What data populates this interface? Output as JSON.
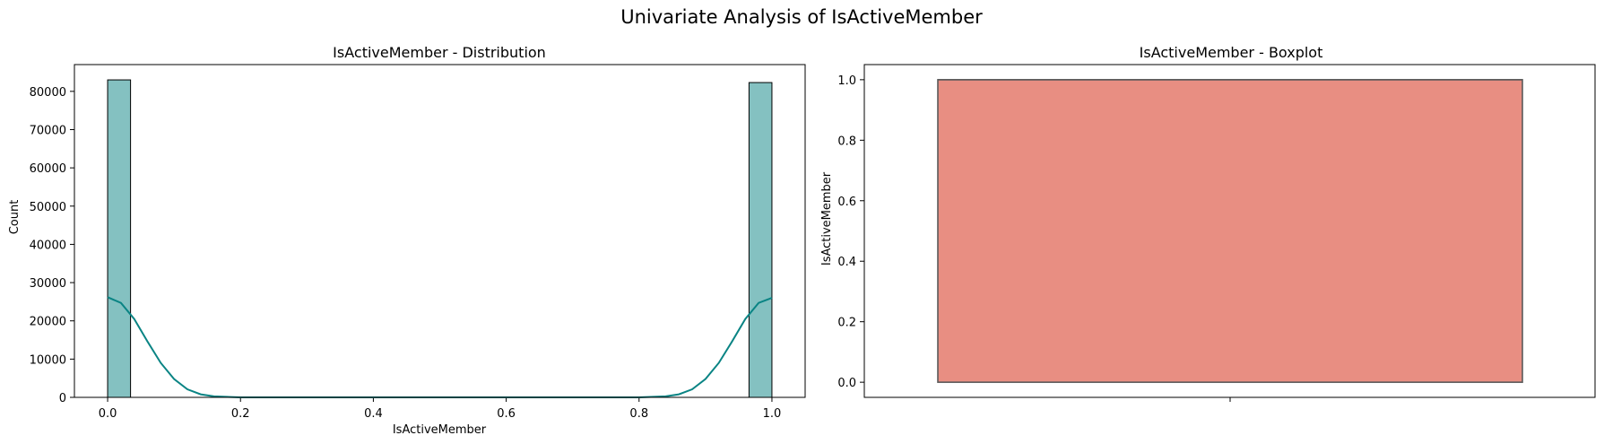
{
  "figure": {
    "title": "Univariate Analysis of IsActiveMember"
  },
  "chart_data": [
    {
      "type": "bar",
      "title": "IsActiveMember - Distribution",
      "xlabel": "IsActiveMember",
      "ylabel": "Count",
      "xlim": [
        -0.05,
        1.05
      ],
      "ylim": [
        0,
        87000
      ],
      "xticks": [
        0.0,
        0.2,
        0.4,
        0.6,
        0.8,
        1.0
      ],
      "xtick_labels": [
        "0.0",
        "0.2",
        "0.4",
        "0.6",
        "0.8",
        "1.0"
      ],
      "yticks": [
        0,
        10000,
        20000,
        30000,
        40000,
        50000,
        60000,
        70000,
        80000
      ],
      "ytick_labels": [
        "0",
        "10000",
        "20000",
        "30000",
        "40000",
        "50000",
        "60000",
        "70000",
        "80000"
      ],
      "bins": [
        {
          "x0": 0.0,
          "x1": 0.0345,
          "count": 83000
        },
        {
          "x0": 0.9655,
          "x1": 1.0,
          "count": 82300
        }
      ],
      "kde": {
        "x": [
          0.0,
          0.02,
          0.04,
          0.06,
          0.08,
          0.1,
          0.12,
          0.14,
          0.16,
          0.2,
          0.4,
          0.6,
          0.8,
          0.84,
          0.86,
          0.88,
          0.9,
          0.92,
          0.94,
          0.96,
          0.98,
          1.0
        ],
        "y": [
          26200,
          24700,
          20500,
          14600,
          9000,
          4800,
          2100,
          800,
          250,
          0,
          0,
          0,
          0,
          250,
          800,
          2100,
          4800,
          9000,
          14600,
          20500,
          24700,
          26000
        ]
      },
      "colors": {
        "bar_fill": "#84c1c1",
        "bar_edge": "#000000",
        "kde_line": "#0a8484"
      }
    },
    {
      "type": "box",
      "title": "IsActiveMember - Boxplot",
      "xlabel": "",
      "ylabel": "IsActiveMember",
      "ylim": [
        -0.05,
        1.05
      ],
      "yticks": [
        0.0,
        0.2,
        0.4,
        0.6,
        0.8,
        1.0
      ],
      "ytick_labels": [
        "0.0",
        "0.2",
        "0.4",
        "0.6",
        "0.8",
        "1.0"
      ],
      "stats": {
        "min": 0.0,
        "q1": 0.0,
        "median": 1.0,
        "q3": 1.0,
        "max": 1.0
      },
      "colors": {
        "box_fill": "#e88e82",
        "box_edge": "#5a5a5a"
      }
    }
  ]
}
